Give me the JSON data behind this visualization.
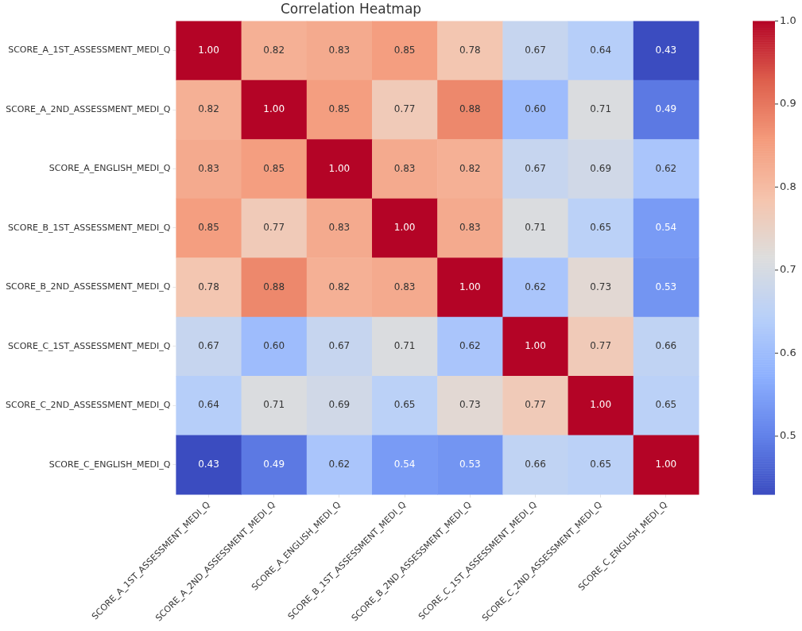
{
  "chart_data": {
    "type": "heatmap",
    "title": "Correlation Heatmap",
    "categories": [
      "SCORE_A_1ST_ASSESSMENT_MEDI_Q",
      "SCORE_A_2ND_ASSESSMENT_MEDI_Q",
      "SCORE_A_ENGLISH_MEDI_Q",
      "SCORE_B_1ST_ASSESSMENT_MEDI_Q",
      "SCORE_B_2ND_ASSESSMENT_MEDI_Q",
      "SCORE_C_1ST_ASSESSMENT_MEDI_Q",
      "SCORE_C_2ND_ASSESSMENT_MEDI_Q",
      "SCORE_C_ENGLISH_MEDI_Q"
    ],
    "y_categories": [
      "SCORE_A_1ST_ASSESSMENT_MEDI_Q",
      "SCORE_A_2ND_ASSESSMENT_MEDI_Q",
      "SCORE_A_ENGLISH_MEDI_Q",
      "SCORE_B_1ST_ASSESSMENT_MEDI_Q",
      "SCORE_B_2ND_ASSESSMENT_MEDI_Q",
      "SCORE_C_1ST_ASSESSMENT_MEDI_Q",
      "SCORE_C_2ND_ASSESSMENT_MEDI_Q",
      "SCORE_C_ENGLISH_MEDI_Q"
    ],
    "cells": [
      [
        1.0,
        0.82,
        0.83,
        0.85,
        0.78,
        0.67,
        0.64,
        0.43
      ],
      [
        0.82,
        1.0,
        0.85,
        0.77,
        0.88,
        0.6,
        0.71,
        0.49
      ],
      [
        0.83,
        0.85,
        1.0,
        0.83,
        0.82,
        0.67,
        0.69,
        0.62
      ],
      [
        0.85,
        0.77,
        0.83,
        1.0,
        0.83,
        0.71,
        0.65,
        0.54
      ],
      [
        0.78,
        0.88,
        0.82,
        0.83,
        1.0,
        0.62,
        0.73,
        0.53
      ],
      [
        0.67,
        0.6,
        0.67,
        0.71,
        0.62,
        1.0,
        0.77,
        0.66
      ],
      [
        0.64,
        0.71,
        0.69,
        0.65,
        0.73,
        0.77,
        1.0,
        0.65
      ],
      [
        0.43,
        0.49,
        0.62,
        0.54,
        0.53,
        0.66,
        0.65,
        1.0
      ]
    ],
    "cell_labels": [
      [
        "1.00",
        "0.82",
        "0.83",
        "0.85",
        "0.78",
        "0.67",
        "0.64",
        "0.43"
      ],
      [
        "0.82",
        "1.00",
        "0.85",
        "0.77",
        "0.88",
        "0.60",
        "0.71",
        "0.49"
      ],
      [
        "0.83",
        "0.85",
        "1.00",
        "0.83",
        "0.82",
        "0.67",
        "0.69",
        "0.62"
      ],
      [
        "0.85",
        "0.77",
        "0.83",
        "1.00",
        "0.83",
        "0.71",
        "0.65",
        "0.54"
      ],
      [
        "0.78",
        "0.88",
        "0.82",
        "0.83",
        "1.00",
        "0.62",
        "0.73",
        "0.53"
      ],
      [
        "0.67",
        "0.60",
        "0.67",
        "0.71",
        "0.62",
        "1.00",
        "0.77",
        "0.66"
      ],
      [
        "0.64",
        "0.71",
        "0.69",
        "0.65",
        "0.73",
        "0.77",
        "1.00",
        "0.65"
      ],
      [
        "0.43",
        "0.49",
        "0.62",
        "0.54",
        "0.53",
        "0.66",
        "0.65",
        "1.00"
      ]
    ],
    "clim": [
      0.43,
      1.0
    ],
    "cticks": [
      {
        "value": 0.5,
        "label": "0.5"
      },
      {
        "value": 0.6,
        "label": "0.6"
      },
      {
        "value": 0.7,
        "label": "0.7"
      },
      {
        "value": 0.8,
        "label": "0.8"
      },
      {
        "value": 0.9,
        "label": "0.9"
      },
      {
        "value": 1.0,
        "label": "1.0"
      }
    ],
    "data_labels": true
  }
}
